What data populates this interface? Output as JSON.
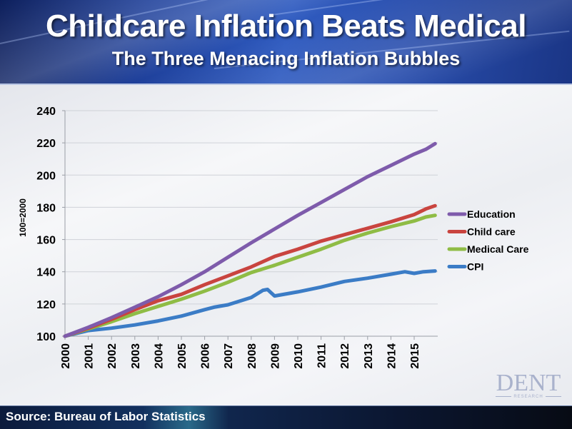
{
  "header": {
    "title": "Childcare Inflation Beats Medical",
    "subtitle": "The Three Menacing Inflation Bubbles"
  },
  "footer": {
    "source": "Source: Bureau of Labor Statistics"
  },
  "logo": {
    "name": "DENT",
    "tagline": "RESEARCH"
  },
  "chart_data": {
    "type": "line",
    "title": "Childcare Inflation Beats Medical",
    "subtitle": "The Three Menacing Inflation Bubbles",
    "xlabel": "",
    "ylabel": "100=2000",
    "xlim": [
      2000,
      2016
    ],
    "ylim": [
      100,
      240
    ],
    "yticks": [
      100,
      120,
      140,
      160,
      180,
      200,
      220,
      240
    ],
    "xticks": [
      "2000",
      "2001",
      "2002",
      "2003",
      "2004",
      "2005",
      "2006",
      "2007",
      "2008",
      "2009",
      "2010",
      "2011",
      "2012",
      "2013",
      "2014",
      "2015"
    ],
    "grid": "horizontal",
    "legend_position": "right",
    "series": [
      {
        "name": "Education",
        "color": "#7e5bab",
        "x": [
          2000,
          2001,
          2002,
          2003,
          2004,
          2005,
          2006,
          2007,
          2008,
          2009,
          2010,
          2011,
          2012,
          2013,
          2014,
          2015,
          2015.5,
          2015.9
        ],
        "values": [
          100,
          105.5,
          111.5,
          118,
          124.5,
          132,
          140,
          149,
          158,
          166.5,
          175,
          183,
          191,
          199,
          206,
          213,
          216,
          219.5
        ]
      },
      {
        "name": "Child care",
        "color": "#c9443f",
        "x": [
          2000,
          2001,
          2002,
          2003,
          2004,
          2005,
          2006,
          2007,
          2008,
          2009,
          2010,
          2011,
          2012,
          2013,
          2014,
          2015,
          2015.5,
          2015.9
        ],
        "values": [
          100,
          105,
          110.5,
          116.5,
          122,
          126,
          132,
          137.5,
          143,
          149.5,
          154,
          159,
          163,
          167,
          171,
          175.5,
          179,
          181
        ]
      },
      {
        "name": "Medical Care",
        "color": "#8fbc45",
        "x": [
          2000,
          2001,
          2002,
          2003,
          2004,
          2005,
          2006,
          2007,
          2008,
          2009,
          2010,
          2011,
          2012,
          2013,
          2014,
          2015,
          2015.5,
          2015.9
        ],
        "values": [
          100,
          104.5,
          109,
          114,
          118.5,
          123,
          128,
          133.5,
          139.5,
          144,
          149,
          154,
          159.5,
          164,
          168,
          171.5,
          174,
          175
        ]
      },
      {
        "name": "CPI",
        "color": "#3b7cc6",
        "x": [
          2000,
          2001,
          2002,
          2003,
          2004,
          2005,
          2006,
          2006.4,
          2007,
          2008,
          2008.5,
          2008.7,
          2009,
          2010,
          2011,
          2012,
          2013,
          2014,
          2014.6,
          2015,
          2015.4,
          2015.9
        ],
        "values": [
          100,
          103.5,
          105,
          107,
          109.5,
          112.5,
          116.5,
          118,
          119.5,
          124,
          128.5,
          129,
          125,
          127.5,
          130.5,
          134,
          136,
          138.5,
          140,
          139,
          140,
          140.5
        ]
      }
    ]
  }
}
